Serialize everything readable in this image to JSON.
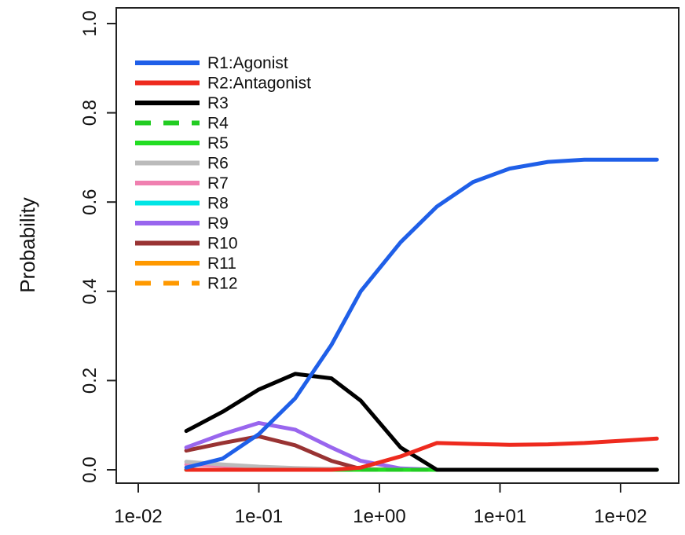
{
  "chart_data": {
    "type": "line",
    "title": "",
    "xlabel": "",
    "ylabel": "Probability",
    "x_scale": "log",
    "xlim": [
      0.006,
      300
    ],
    "ylim": [
      0,
      1
    ],
    "x_ticks": [
      0.01,
      0.1,
      1,
      10,
      100
    ],
    "x_tick_labels": [
      "1e-02",
      "1e-01",
      "1e+00",
      "1e+01",
      "1e+02"
    ],
    "y_ticks": [
      0,
      0.2,
      0.4,
      0.6,
      0.8,
      1.0
    ],
    "y_tick_labels": [
      "0.0",
      "0.2",
      "0.4",
      "0.6",
      "0.8",
      "1.0"
    ],
    "grid": false,
    "legend_position": "top-left",
    "x": [
      0.025,
      0.05,
      0.1,
      0.2,
      0.4,
      0.7,
      1.5,
      3,
      6,
      12,
      25,
      50,
      100,
      200
    ],
    "series": [
      {
        "name": "R1:Agonist",
        "color": "#1f5fe8",
        "dash": "solid",
        "values": [
          0.005,
          0.025,
          0.08,
          0.16,
          0.28,
          0.4,
          0.51,
          0.59,
          0.645,
          0.675,
          0.69,
          0.695,
          0.695,
          0.695
        ]
      },
      {
        "name": "R2:Antagonist",
        "color": "#ee2a1e",
        "dash": "solid",
        "values": [
          0.0,
          0.0,
          0.0,
          0.0,
          0.0,
          0.005,
          0.03,
          0.06,
          0.058,
          0.056,
          0.057,
          0.06,
          0.065,
          0.07
        ]
      },
      {
        "name": "R3",
        "color": "#000000",
        "dash": "solid",
        "values": [
          0.087,
          0.13,
          0.18,
          0.215,
          0.205,
          0.155,
          0.05,
          0.0,
          0.0,
          0.0,
          0.0,
          0.0,
          0.0,
          0.0
        ]
      },
      {
        "name": "R4",
        "color": "#22cc22",
        "dash": "dashed",
        "values": [
          0.0,
          0.0,
          0.0,
          0.0,
          0.0,
          0.0,
          0.0,
          0.0,
          0.0,
          0.0,
          0.0,
          0.0,
          0.0,
          0.0
        ]
      },
      {
        "name": "R5",
        "color": "#22dd22",
        "dash": "solid",
        "values": [
          0.0,
          0.0,
          0.0,
          0.0,
          0.0,
          0.0,
          0.0,
          0.0,
          0.0,
          0.0,
          0.0,
          0.0,
          0.0,
          0.0
        ]
      },
      {
        "name": "R6",
        "color": "#bbbbbb",
        "dash": "solid",
        "values": [
          0.018,
          0.012,
          0.007,
          0.004,
          0.002,
          0.001,
          0.0,
          0.0,
          0.0,
          0.0,
          0.0,
          0.0,
          0.0,
          0.0
        ]
      },
      {
        "name": "R7",
        "color": "#f080b0",
        "dash": "solid",
        "values": [
          0.012,
          0.009,
          0.005,
          0.003,
          0.001,
          0.0,
          0.0,
          0.0,
          0.0,
          0.0,
          0.0,
          0.0,
          0.0,
          0.0
        ]
      },
      {
        "name": "R8",
        "color": "#00e5e5",
        "dash": "solid",
        "values": [
          0.0,
          0.0,
          0.0,
          0.0,
          0.0,
          0.0,
          0.0,
          0.0,
          0.0,
          0.0,
          0.0,
          0.0,
          0.0,
          0.0
        ]
      },
      {
        "name": "R9",
        "color": "#9966ee",
        "dash": "solid",
        "values": [
          0.05,
          0.08,
          0.105,
          0.09,
          0.05,
          0.02,
          0.003,
          0.0,
          0.0,
          0.0,
          0.0,
          0.0,
          0.0,
          0.0
        ]
      },
      {
        "name": "R10",
        "color": "#993333",
        "dash": "solid",
        "values": [
          0.043,
          0.06,
          0.075,
          0.055,
          0.02,
          0.002,
          0.0,
          0.0,
          0.0,
          0.0,
          0.0,
          0.0,
          0.0,
          0.0
        ]
      },
      {
        "name": "R11",
        "color": "#ff9900",
        "dash": "solid",
        "values": [
          0.0,
          0.0,
          0.0,
          0.0,
          0.0,
          0.0,
          0.0,
          0.0,
          0.0,
          0.0,
          0.0,
          0.0,
          0.0,
          0.0
        ]
      },
      {
        "name": "R12",
        "color": "#ff9900",
        "dash": "dashed",
        "values": [
          0.0,
          0.0,
          0.0,
          0.0,
          0.0,
          0.0,
          0.0,
          0.0,
          0.0,
          0.0,
          0.0,
          0.0,
          0.0,
          0.0
        ]
      }
    ]
  }
}
